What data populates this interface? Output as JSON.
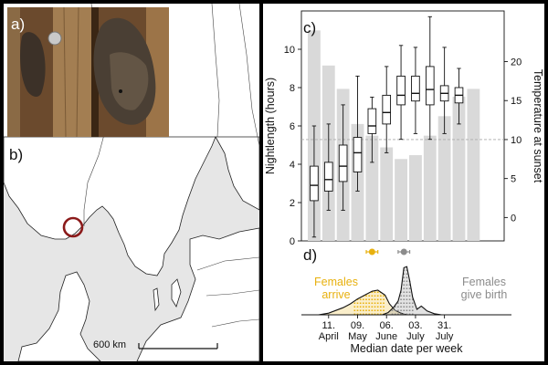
{
  "panels": {
    "a": "a)",
    "b": "b)",
    "c": "c)",
    "d": "d)"
  },
  "map": {
    "scale_label": "600 km",
    "marker_color": "#8b1a1a"
  },
  "chart_data": [
    {
      "type": "box",
      "title": "",
      "xlabel": "",
      "ylabel": "Nightlength (hours)",
      "ylabel_right": "Temperature at sunset",
      "ylim": [
        0,
        12
      ],
      "yticks": [
        0,
        2,
        4,
        6,
        8,
        10
      ],
      "y2_ticks": [
        0,
        5,
        10,
        15,
        20
      ],
      "temperature_reference_line": 10,
      "weeks": 14,
      "temperature_bars": [
        24,
        19.5,
        16.5,
        12,
        10.5,
        9,
        7.5,
        8,
        10.5,
        13,
        15.5,
        16.5
      ],
      "temperature_bar_weeks": [
        1,
        2,
        3,
        4,
        5,
        6,
        7,
        8,
        9,
        10,
        11,
        12
      ],
      "boxes": [
        {
          "week": 1,
          "min": 0.2,
          "q1": 2.1,
          "median": 2.9,
          "q3": 3.9,
          "max": 6.0
        },
        {
          "week": 2,
          "min": 1.6,
          "q1": 2.6,
          "median": 3.2,
          "q3": 4.1,
          "max": 6.1
        },
        {
          "week": 3,
          "min": 1.6,
          "q1": 3.1,
          "median": 3.9,
          "q3": 5.0,
          "max": 7.1
        },
        {
          "week": 4,
          "min": 2.6,
          "q1": 3.6,
          "median": 4.6,
          "q3": 5.4,
          "max": 8.6
        },
        {
          "week": 5,
          "min": 4.1,
          "q1": 5.6,
          "median": 6.0,
          "q3": 6.9,
          "max": 7.5
        },
        {
          "week": 6,
          "min": 4.6,
          "q1": 6.1,
          "median": 6.7,
          "q3": 7.6,
          "max": 9.1
        },
        {
          "week": 7,
          "min": 5.3,
          "q1": 7.1,
          "median": 7.6,
          "q3": 8.6,
          "max": 10.2
        },
        {
          "week": 8,
          "min": 5.6,
          "q1": 7.3,
          "median": 7.7,
          "q3": 8.6,
          "max": 10.1
        },
        {
          "week": 9,
          "min": 5.3,
          "q1": 7.1,
          "median": 7.9,
          "q3": 9.1,
          "max": 11.7
        },
        {
          "week": 10,
          "min": 5.6,
          "q1": 7.3,
          "median": 7.7,
          "q3": 8.1,
          "max": 10.1
        },
        {
          "week": 11,
          "min": 6.1,
          "q1": 7.2,
          "median": 7.6,
          "q3": 8.0,
          "max": 9.0
        }
      ]
    },
    {
      "type": "density",
      "xlabel": "Median date per week",
      "x_ticks": [
        {
          "week": 2,
          "label": "11.",
          "label2": "April"
        },
        {
          "week": 4,
          "label": "09.",
          "label2": "May"
        },
        {
          "week": 6,
          "label": "06.",
          "label2": "June"
        },
        {
          "week": 8,
          "label": "03.",
          "label2": "July"
        },
        {
          "week": 10,
          "label": "31.",
          "label2": "July"
        }
      ],
      "series": [
        {
          "name": "Females arrive",
          "label_line1": "Females",
          "label_line2": "arrive",
          "color": "#e8b10f",
          "peak_week": 5.4,
          "mean_week": 5.0,
          "range_weeks": [
            4.6,
            5.4
          ],
          "x": [
            1.3,
            2,
            3,
            3.5,
            4,
            4.5,
            5,
            5.4,
            5.9,
            6.2,
            6.6,
            7.0,
            7.4
          ],
          "y": [
            0,
            0.03,
            0.13,
            0.2,
            0.29,
            0.36,
            0.43,
            0.45,
            0.36,
            0.2,
            0.08,
            0.03,
            0
          ]
        },
        {
          "name": "Females give birth",
          "label_line1": "Females",
          "label_line2": "give birth",
          "color": "#8c8c8c",
          "peak_week": 7.2,
          "mean_week": 7.2,
          "range_weeks": [
            6.8,
            7.6
          ],
          "x": [
            5.7,
            6.1,
            6.5,
            6.8,
            7.0,
            7.2,
            7.4,
            7.6,
            7.8,
            8.1,
            8.4,
            8.8,
            9.3,
            9.8
          ],
          "y": [
            0,
            0.04,
            0.14,
            0.25,
            0.45,
            0.86,
            0.88,
            0.62,
            0.32,
            0.1,
            0.16,
            0.07,
            0.02,
            0
          ]
        }
      ]
    }
  ]
}
